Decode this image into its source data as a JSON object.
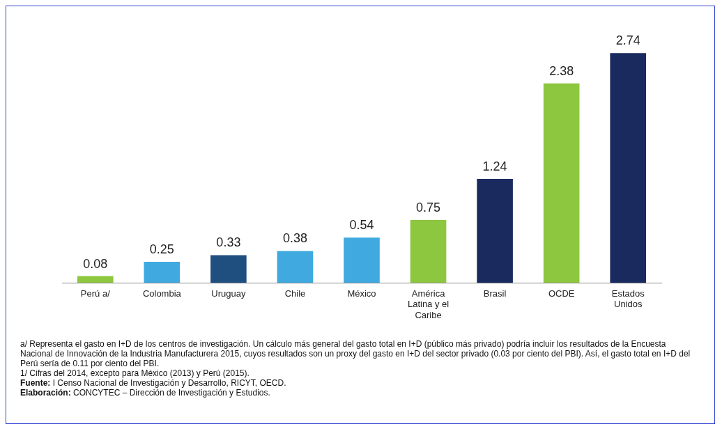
{
  "chart_data": {
    "type": "bar",
    "categories": [
      "Perú a/",
      "Colombia",
      "Uruguay",
      "Chile",
      "México",
      "América Latina y el Caribe",
      "Brasil",
      "OCDE",
      "Estados Unidos"
    ],
    "values": [
      0.08,
      0.25,
      0.33,
      0.38,
      0.54,
      0.75,
      1.24,
      2.38,
      2.74
    ],
    "colors": [
      "#8dc63f",
      "#3fa9e0",
      "#1f4f7f",
      "#3fa9e0",
      "#3fa9e0",
      "#8dc63f",
      "#1b2a5e",
      "#8dc63f",
      "#1b2a5e"
    ],
    "data_labels": true,
    "grid": false,
    "legend": false,
    "annotations": [
      "a/ Representa el gasto en I+D de los centros de investigación. Un cálculo más general del gasto total en I+D (público más privado) podría incluir los resultados de la Encuesta Nacional de Innovación de la Industria Manufacturera 2015, cuyos resultados son un proxy del gasto en I+D del sector privado (0.03 por ciento del PBI). Así, el gasto total en I+D del Perú sería de 0.11 por ciento del PBI.",
      "1/ Cifras del 2014, excepto para México (2013) y Perú (2015).",
      "Fuente: I Censo Nacional de Investigación y Desarrollo, RICYT, OECD.",
      "Elaboración: CONCYTEC – Dirección de Investigación y Estudios."
    ]
  }
}
